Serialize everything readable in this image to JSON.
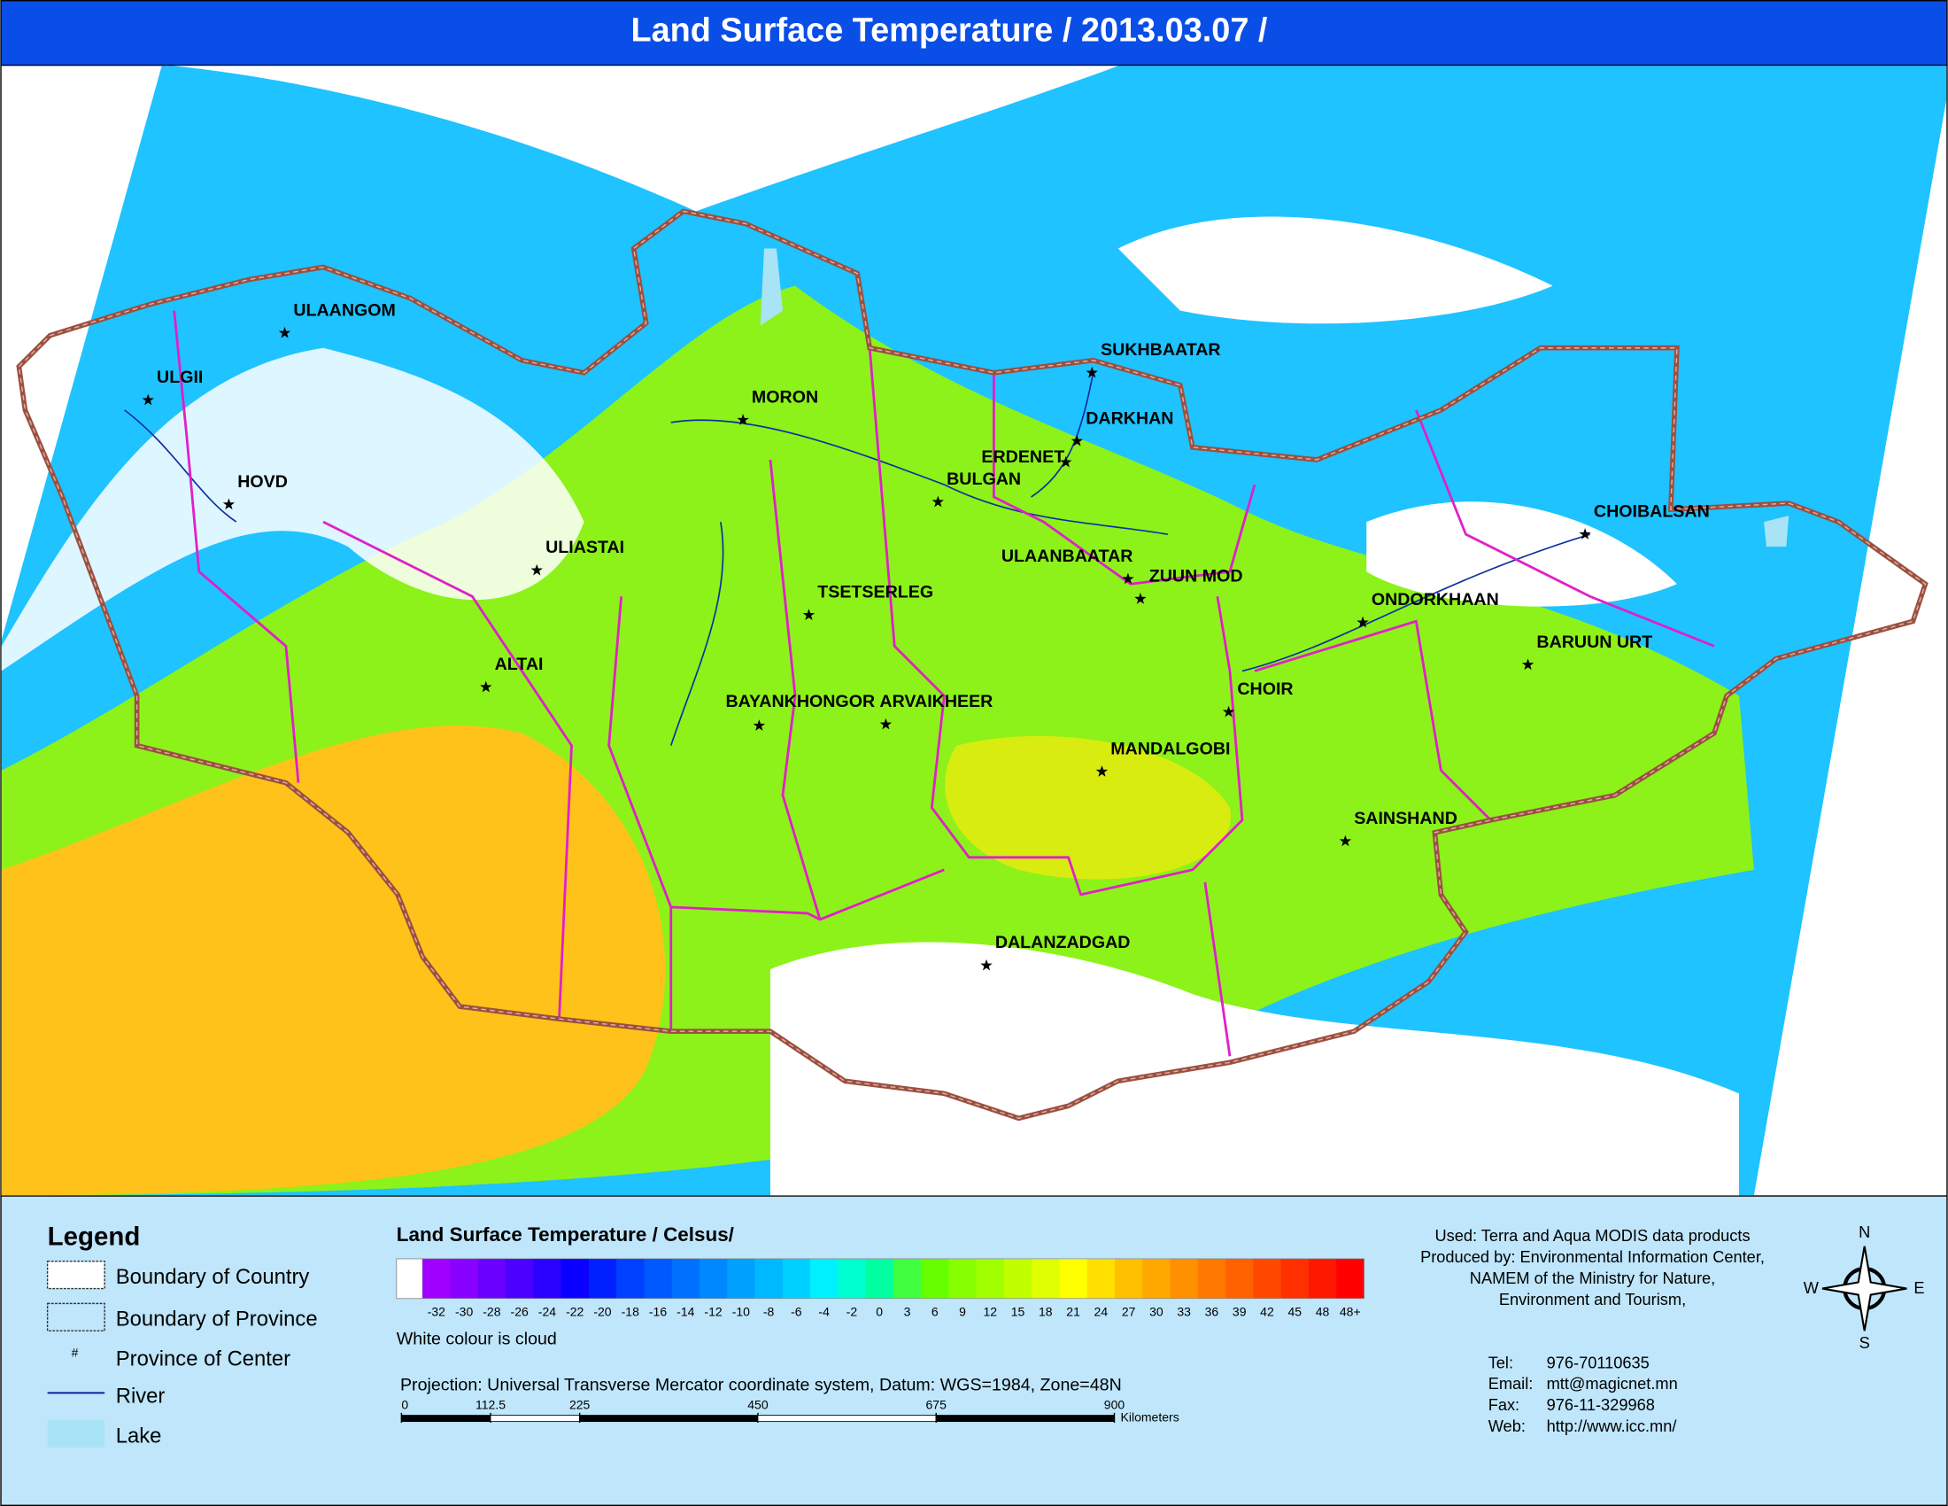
{
  "header": {
    "title": "Land Surface Temperature / 2013.03.07 /"
  },
  "cities": [
    "ULAANGOM",
    "ULGII",
    "HOVD",
    "MORON",
    "SUKHBAATAR",
    "DARKHAN",
    "ERDENET",
    "BULGAN",
    "ULIASTAI",
    "ULAANBAATAR",
    "ZUUN MOD",
    "TSETSERLEG",
    "ONDORKHAAN",
    "CHOIBALSAN",
    "BARUUN URT",
    "ALTAI",
    "BAYANKHONGOR",
    "ARVAIKHEER",
    "CHOIR",
    "MANDALGOBI",
    "SAINSHAND",
    "DALANZADGAD"
  ],
  "legend": {
    "title": "Legend",
    "items": [
      "Boundary of Country",
      "Boundary of Province",
      "Province of Center",
      "River",
      "Lake"
    ],
    "center_symbol": "#"
  },
  "colorbar": {
    "title": "Land Surface Temperature / Celsus/",
    "note": "White colour is cloud",
    "cloud_color": "#ffffff",
    "labels": [
      -32,
      -30,
      -28,
      -26,
      -24,
      -22,
      -20,
      -18,
      -16,
      -14,
      -12,
      -10,
      -8,
      -6,
      -4,
      -2,
      0,
      3,
      6,
      9,
      12,
      15,
      18,
      21,
      24,
      27,
      30,
      33,
      36,
      39,
      42,
      45,
      48,
      "48+"
    ],
    "colors": [
      "#a000ff",
      "#8800ff",
      "#6a00ff",
      "#4c00ff",
      "#2a00ff",
      "#0a00ff",
      "#0020ff",
      "#0040ff",
      "#0058ff",
      "#0070ff",
      "#0088ff",
      "#00a0ff",
      "#00b8ff",
      "#00d0ff",
      "#00f0ff",
      "#00ffd0",
      "#00ffa0",
      "#40ff40",
      "#66ff00",
      "#88ff00",
      "#a0ff00",
      "#c0ff00",
      "#e0ff00",
      "#ffff00",
      "#ffe000",
      "#ffc000",
      "#ffa800",
      "#ff9000",
      "#ff7800",
      "#ff6000",
      "#ff4800",
      "#ff3000",
      "#ff1800",
      "#ff0000"
    ]
  },
  "projection": "Projection: Universal Transverse Mercator coordinate system, Datum: WGS=1984, Zone=48N",
  "scale_bar": {
    "ticks": [
      0,
      112.5,
      225,
      450,
      675,
      900
    ],
    "unit": "Kilometers"
  },
  "credits": [
    "Used: Terra and Aqua MODIS data products",
    "Produced by: Environmental Information Center,",
    "NAMEM of the Ministry for Nature,",
    "Environment and Tourism,"
  ],
  "contacts": [
    {
      "label": "Tel:",
      "value": "976-70110635"
    },
    {
      "label": "Email:",
      "value": "mtt@magicnet.mn"
    },
    {
      "label": "Fax:",
      "value": "976-11-329968"
    },
    {
      "label": "Web:",
      "value": "http://www.icc.mn/"
    }
  ],
  "compass": {
    "n": "N",
    "e": "E",
    "s": "S",
    "w": "W"
  }
}
